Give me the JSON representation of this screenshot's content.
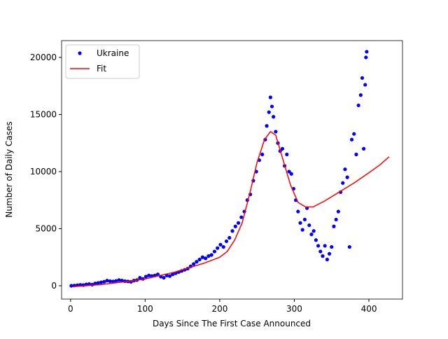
{
  "chart_data": {
    "type": "scatter-fit",
    "xlabel": "Days Since The First Case Announced",
    "ylabel": "Number of Daily Cases",
    "xlim": [
      -12,
      445
    ],
    "ylim": [
      -1166,
      21470
    ],
    "xticks": [
      0,
      100,
      200,
      300,
      400
    ],
    "yticks": [
      0,
      5000,
      10000,
      15000,
      20000
    ],
    "legend": "upper left",
    "series": [
      {
        "name": "Ukraine",
        "color": "#0000ff",
        "kind": "points",
        "x": [
          1,
          5,
          9,
          13,
          17,
          21,
          25,
          29,
          33,
          37,
          41,
          45,
          49,
          53,
          57,
          61,
          65,
          69,
          73,
          77,
          81,
          85,
          89,
          93,
          97,
          101,
          105,
          109,
          113,
          117,
          121,
          125,
          129,
          133,
          137,
          141,
          145,
          149,
          153,
          157,
          161,
          165,
          169,
          173,
          177,
          181,
          185,
          189,
          193,
          197,
          201,
          205,
          209,
          213,
          217,
          221,
          225,
          229,
          233,
          237,
          241,
          245,
          249,
          253,
          257,
          261,
          263,
          266,
          268,
          270,
          272,
          275,
          278,
          281,
          284,
          287,
          290,
          293,
          296,
          299,
          302,
          305,
          308,
          311,
          314,
          317,
          320,
          323,
          326,
          329,
          332,
          335,
          338,
          341,
          344,
          347,
          350,
          353,
          356,
          359,
          362,
          365,
          368,
          371,
          374,
          377,
          380,
          383,
          386,
          389,
          391,
          393,
          395,
          396,
          397
        ],
        "values": [
          0,
          20,
          50,
          80,
          60,
          120,
          150,
          100,
          200,
          250,
          300,
          350,
          450,
          400,
          380,
          420,
          500,
          450,
          400,
          380,
          350,
          450,
          500,
          700,
          600,
          800,
          900,
          850,
          900,
          1000,
          800,
          700,
          900,
          850,
          1000,
          1100,
          1200,
          1300,
          1400,
          1500,
          1700,
          1900,
          2100,
          2300,
          2500,
          2400,
          2600,
          2700,
          3000,
          3300,
          3600,
          3400,
          3900,
          4200,
          4800,
          5200,
          5500,
          6000,
          6500,
          7500,
          8000,
          9200,
          10000,
          11000,
          11500,
          12800,
          14000,
          15200,
          16500,
          15700,
          14800,
          13500,
          12500,
          11800,
          12000,
          10500,
          11500,
          10000,
          9800,
          8500,
          7500,
          6500,
          5500,
          4900,
          5800,
          6800,
          5300,
          4500,
          4800,
          4000,
          3500,
          3000,
          2600,
          3500,
          2300,
          2800,
          3400,
          5200,
          5800,
          6500,
          8200,
          9000,
          10200,
          9500,
          3400,
          12800,
          13300,
          11500,
          15800,
          16700,
          18200,
          12000,
          17600,
          20000,
          20500
        ]
      },
      {
        "name": "Fit",
        "color": "#ff0000",
        "kind": "line",
        "x": [
          3,
          20,
          40,
          60,
          80,
          100,
          120,
          140,
          160,
          180,
          200,
          210,
          220,
          230,
          240,
          250,
          260,
          268,
          275,
          285,
          295,
          305,
          315,
          325,
          340,
          360,
          380,
          400,
          415,
          427
        ],
        "values": [
          -80,
          0,
          100,
          250,
          400,
          600,
          900,
          1200,
          1600,
          2000,
          2500,
          3000,
          4000,
          5500,
          8000,
          10800,
          12800,
          13500,
          13200,
          11000,
          8800,
          7300,
          6900,
          6900,
          7400,
          8200,
          9000,
          9900,
          10600,
          11300
        ]
      }
    ]
  }
}
